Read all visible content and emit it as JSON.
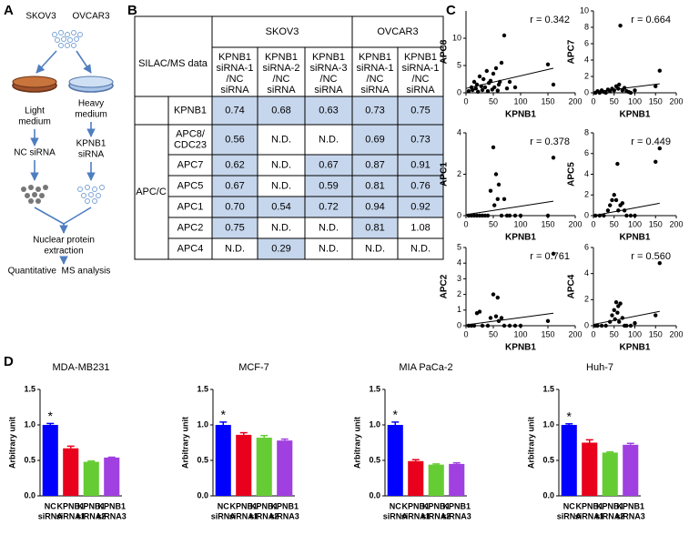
{
  "panel_labels": [
    "A",
    "B",
    "C",
    "D"
  ],
  "diagram": {
    "cell_lines": [
      "SKOV3",
      "OVCAR3"
    ],
    "media": [
      [
        "Light",
        "medium"
      ],
      [
        "Heavy",
        "medium"
      ]
    ],
    "treatments": [
      [
        "NC siRNA"
      ],
      [
        "KPNB1",
        "siRNA"
      ]
    ],
    "steps": [
      [
        "Nuclear protein",
        "extraction"
      ],
      [
        "Quantitative  MS analysis"
      ]
    ]
  },
  "table": {
    "corner": "SILAC/MS data",
    "groups": [
      "SKOV3",
      "OVCAR3"
    ],
    "columns": [
      [
        "KPNB1",
        "siRNA-1",
        "/NC",
        "siRNA"
      ],
      [
        "KPNB1",
        "siRNA-2",
        "/NC",
        "siRNA"
      ],
      [
        "KPNB1",
        "siRNA-3",
        "/NC",
        "siRNA"
      ],
      [
        "KPNB1",
        "siRNA-1",
        "/NC",
        "siRNA"
      ],
      [
        "KPNB1",
        "siRNA-1",
        "/NC",
        "siRNA"
      ]
    ],
    "row_group": "APC/C",
    "highlight_color": "#c6d6ec",
    "rows": [
      {
        "name": [
          "KPNB1"
        ],
        "cells": [
          "0.74",
          "0.68",
          "0.63",
          "0.73",
          "0.75"
        ],
        "highlight": [
          true,
          true,
          true,
          true,
          true
        ]
      },
      {
        "name": [
          "APC8/",
          "CDC23"
        ],
        "cells": [
          "0.56",
          "N.D.",
          "N.D.",
          "0.69",
          "0.73"
        ],
        "highlight": [
          true,
          false,
          false,
          true,
          true
        ]
      },
      {
        "name": [
          "APC7"
        ],
        "cells": [
          "0.62",
          "N.D.",
          "0.67",
          "0.87",
          "0.91"
        ],
        "highlight": [
          true,
          false,
          true,
          true,
          true
        ]
      },
      {
        "name": [
          "APC5"
        ],
        "cells": [
          "0.67",
          "N.D.",
          "0.59",
          "0.81",
          "0.76"
        ],
        "highlight": [
          true,
          false,
          true,
          true,
          true
        ]
      },
      {
        "name": [
          "APC1"
        ],
        "cells": [
          "0.70",
          "0.54",
          "0.72",
          "0.94",
          "0.92"
        ],
        "highlight": [
          true,
          true,
          true,
          true,
          true
        ]
      },
      {
        "name": [
          "APC2"
        ],
        "cells": [
          "0.75",
          "N.D.",
          "N.D.",
          "0.81",
          "1.08"
        ],
        "highlight": [
          true,
          false,
          false,
          true,
          false
        ]
      },
      {
        "name": [
          "APC4"
        ],
        "cells": [
          "N.D.",
          "0.29",
          "N.D.",
          "N.D.",
          "N.D."
        ],
        "highlight": [
          false,
          true,
          false,
          false,
          false
        ]
      }
    ]
  },
  "chart_data": [
    {
      "type": "scatter",
      "xlabel": "KPNB1",
      "ylabel": "APC8",
      "annotation": "r = 0.342",
      "color": "#000000",
      "x": [
        5,
        10,
        12,
        15,
        18,
        20,
        22,
        25,
        28,
        30,
        32,
        35,
        38,
        40,
        42,
        45,
        48,
        50,
        52,
        55,
        58,
        60,
        62,
        65,
        70,
        75,
        80,
        90,
        150,
        160
      ],
      "y": [
        0.3,
        1,
        0.5,
        2,
        0.8,
        1.5,
        0.2,
        3,
        1.2,
        0.5,
        2.5,
        1,
        4,
        0.3,
        1.8,
        2.2,
        0.6,
        3.5,
        1,
        4.5,
        0.4,
        1.5,
        2,
        5.5,
        10.5,
        0.8,
        2,
        1,
        5.2,
        1.5
      ],
      "fit": {
        "x": [
          0,
          160
        ],
        "y": [
          0.8,
          4.5
        ]
      },
      "xlim": [
        0,
        200
      ],
      "xticks": [
        0,
        50,
        100,
        150,
        200
      ],
      "ylim": [
        0,
        15
      ],
      "yticks": [
        0,
        5,
        10
      ]
    },
    {
      "type": "scatter",
      "xlabel": "KPNB1",
      "ylabel": "APC7",
      "annotation": "r = 0.664",
      "color": "#000000",
      "x": [
        5,
        10,
        15,
        20,
        25,
        30,
        35,
        40,
        45,
        50,
        55,
        60,
        62,
        65,
        70,
        75,
        80,
        85,
        90,
        100,
        150,
        160
      ],
      "y": [
        0,
        0.2,
        0,
        0.3,
        0.1,
        0,
        0.4,
        0.2,
        0.5,
        0.3,
        0.8,
        0.5,
        1,
        8.2,
        0.3,
        0.6,
        0.2,
        0.1,
        0,
        0.3,
        0.8,
        2.7
      ],
      "fit": {
        "x": [
          0,
          160
        ],
        "y": [
          0.1,
          1.1
        ]
      },
      "xlim": [
        0,
        200
      ],
      "xticks": [
        0,
        50,
        100,
        150,
        200
      ],
      "ylim": [
        0,
        10
      ],
      "yticks": [
        0,
        2,
        4,
        6,
        8,
        10
      ]
    },
    {
      "type": "scatter",
      "xlabel": "KPNB1",
      "ylabel": "APC1",
      "annotation": "r = 0.378",
      "color": "#000000",
      "x": [
        5,
        10,
        15,
        20,
        25,
        30,
        35,
        40,
        45,
        50,
        52,
        55,
        58,
        60,
        65,
        70,
        75,
        80,
        90,
        100,
        150,
        160
      ],
      "y": [
        0,
        0,
        0,
        0,
        0,
        0,
        0,
        0,
        1.2,
        3.3,
        0.5,
        2,
        0.8,
        1.5,
        0,
        0.8,
        0,
        0,
        0,
        0,
        0,
        2.8
      ],
      "fit": {
        "x": [
          0,
          160
        ],
        "y": [
          0.05,
          0.7
        ]
      },
      "xlim": [
        0,
        200
      ],
      "xticks": [
        0,
        50,
        100,
        150,
        200
      ],
      "ylim": [
        0,
        4
      ],
      "yticks": [
        0,
        2,
        4
      ]
    },
    {
      "type": "scatter",
      "xlabel": "KPNB1",
      "ylabel": "APC5",
      "annotation": "r = 0.449",
      "color": "#000000",
      "x": [
        5,
        15,
        25,
        35,
        40,
        45,
        50,
        55,
        58,
        60,
        65,
        70,
        75,
        80,
        90,
        100,
        150,
        160
      ],
      "y": [
        0,
        0,
        0,
        0.5,
        1,
        1.5,
        2,
        1.5,
        5,
        0.5,
        1,
        1.2,
        0.5,
        0,
        0,
        0,
        5.2,
        6.5
      ],
      "fit": {
        "x": [
          0,
          160
        ],
        "y": [
          0,
          1.2
        ]
      },
      "xlim": [
        0,
        200
      ],
      "xticks": [
        0,
        50,
        100,
        150,
        200
      ],
      "ylim": [
        0,
        8
      ],
      "yticks": [
        0,
        2,
        4,
        6,
        8
      ]
    },
    {
      "type": "scatter",
      "xlabel": "KPNB1",
      "ylabel": "APC2",
      "annotation": "r = 0.761",
      "color": "#000000",
      "x": [
        5,
        10,
        15,
        20,
        25,
        30,
        40,
        45,
        50,
        55,
        58,
        60,
        65,
        70,
        80,
        90,
        100,
        150,
        160
      ],
      "y": [
        0,
        0,
        0,
        0.8,
        0.9,
        0,
        0,
        0.5,
        2,
        0.6,
        1.8,
        0.3,
        0.5,
        0,
        0,
        0,
        0,
        0.3,
        4.6
      ],
      "fit": {
        "x": [
          0,
          160
        ],
        "y": [
          0.05,
          0.8
        ]
      },
      "xlim": [
        0,
        200
      ],
      "xticks": [
        0,
        50,
        100,
        150,
        200
      ],
      "ylim": [
        0,
        5
      ],
      "yticks": [
        0,
        1,
        2,
        3,
        4,
        5
      ]
    },
    {
      "type": "scatter",
      "xlabel": "KPNB1",
      "ylabel": "APC4",
      "annotation": "r = 0.560",
      "color": "#000000",
      "x": [
        5,
        10,
        20,
        30,
        40,
        45,
        50,
        52,
        55,
        58,
        60,
        62,
        65,
        70,
        75,
        80,
        90,
        100,
        150,
        160
      ],
      "y": [
        0,
        0,
        0,
        0,
        0.3,
        0.8,
        1.2,
        0.5,
        1.8,
        1,
        1.5,
        0.3,
        1.7,
        0.6,
        0,
        0,
        0,
        0.2,
        0.8,
        4.8
      ],
      "fit": {
        "x": [
          0,
          160
        ],
        "y": [
          0.1,
          1.1
        ]
      },
      "xlim": [
        0,
        200
      ],
      "xticks": [
        0,
        50,
        100,
        150,
        200
      ],
      "ylim": [
        0,
        6
      ],
      "yticks": [
        0,
        2,
        4,
        6
      ]
    },
    {
      "type": "bar",
      "title": "MDA-MB231",
      "ylabel": "Arbitrary unit",
      "annotation": "*",
      "categories": [
        [
          "NC",
          "siRNA"
        ],
        [
          "KPNB1",
          "siRNA1"
        ],
        [
          "KPNB1",
          "siRNA2"
        ],
        [
          "KPNB1",
          "siRNA3"
        ]
      ],
      "values": [
        1.0,
        0.67,
        0.48,
        0.54
      ],
      "errors": [
        0.02,
        0.03,
        0.01,
        0.005
      ],
      "colors": [
        "#0000ff",
        "#e8001c",
        "#66cc33",
        "#a040e0"
      ],
      "ylim": [
        0,
        1.5
      ],
      "yticks": [
        {
          "value": 0,
          "label": "0.0"
        },
        0.5,
        {
          "value": 1,
          "label": "1.0"
        },
        1.5
      ]
    },
    {
      "type": "bar",
      "title": "MCF-7",
      "ylabel": "Arbitrary unit",
      "annotation": "*",
      "categories": [
        [
          "NC",
          "siRNA"
        ],
        [
          "KPNB1",
          "siRNA1"
        ],
        [
          "KPNB1",
          "siRNA2"
        ],
        [
          "KPNB1",
          "siRNA3"
        ]
      ],
      "values": [
        1.0,
        0.86,
        0.82,
        0.78
      ],
      "errors": [
        0.04,
        0.03,
        0.03,
        0.02
      ],
      "colors": [
        "#0000ff",
        "#e8001c",
        "#66cc33",
        "#a040e0"
      ],
      "ylim": [
        0,
        1.5
      ],
      "yticks": [
        {
          "value": 0,
          "label": "0.0"
        },
        0.5,
        {
          "value": 1,
          "label": "1.0"
        },
        1.5
      ]
    },
    {
      "type": "bar",
      "title": "MIA PaCa-2",
      "ylabel": "Arbitrary unit",
      "annotation": "*",
      "categories": [
        [
          "NC",
          "siRNA"
        ],
        [
          "KPNB1",
          "siRNA1"
        ],
        [
          "KPNB1",
          "siRNA2"
        ],
        [
          "KPNB1",
          "siRNA3"
        ]
      ],
      "values": [
        1.0,
        0.49,
        0.44,
        0.45
      ],
      "errors": [
        0.04,
        0.02,
        0.01,
        0.015
      ],
      "colors": [
        "#0000ff",
        "#e8001c",
        "#66cc33",
        "#a040e0"
      ],
      "ylim": [
        0,
        1.5
      ],
      "yticks": [
        {
          "value": 0,
          "label": "0.0"
        },
        0.5,
        {
          "value": 1,
          "label": "1.0"
        },
        1.5
      ]
    },
    {
      "type": "bar",
      "title": "Huh-7",
      "ylabel": "Arbitrary unit",
      "annotation": "*",
      "categories": [
        [
          "NC",
          "siRNA"
        ],
        [
          "KPNB1",
          "siRNA1"
        ],
        [
          "KPNB1",
          "siRNA2"
        ],
        [
          "KPNB1",
          "siRNA3"
        ]
      ],
      "values": [
        1.0,
        0.75,
        0.61,
        0.72
      ],
      "errors": [
        0.015,
        0.04,
        0.01,
        0.02
      ],
      "colors": [
        "#0000ff",
        "#e8001c",
        "#66cc33",
        "#a040e0"
      ],
      "ylim": [
        0,
        1.5
      ],
      "yticks": [
        {
          "value": 0,
          "label": "0.0"
        },
        0.5,
        {
          "value": 1,
          "label": "1.0"
        },
        1.5
      ]
    }
  ]
}
